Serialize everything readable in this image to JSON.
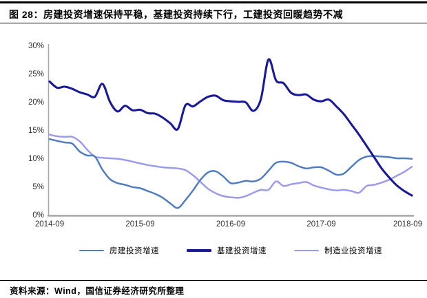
{
  "header": {
    "figure_label": "图 28：",
    "title": "房建投资增速保持平稳，基建投资持续下行，工建投资回暖趋势不减"
  },
  "footer": {
    "text": "资料来源：Wind，国信证券经济研究所整理"
  },
  "colors": {
    "housing_line": "#4f7dbf",
    "infrastructure_line": "#1a1a99",
    "manufacturing_line": "#9b9bec",
    "axis": "#a6a6a6",
    "tick_text": "#303030"
  },
  "chart_data": {
    "type": "line",
    "title": "房建投资增速保持平稳，基建投资持续下行，工建投资回暖趋势不减",
    "x_start": "2014-09",
    "x_end": "2018-09",
    "frequency": "monthly",
    "x_tick_labels": [
      "2014-09",
      "2015-09",
      "2016-09",
      "2017-09",
      "2018-09"
    ],
    "y_tick_labels": [
      "0%",
      "5%",
      "10%",
      "15%",
      "20%",
      "25%",
      "30%"
    ],
    "ylim": [
      0,
      30
    ],
    "grid": false,
    "legend_position": "bottom",
    "series": [
      {
        "name": "房建投资增速",
        "color": "#4f7dbf",
        "stroke_width": 2.5,
        "values": [
          13.4,
          13.1,
          12.8,
          12.6,
          11.2,
          10.5,
          10.3,
          8.0,
          6.3,
          5.6,
          5.3,
          4.9,
          4.7,
          4.2,
          3.7,
          3.0,
          2.0,
          1.2,
          2.6,
          4.3,
          6.2,
          7.5,
          7.7,
          6.8,
          5.6,
          5.7,
          6.0,
          5.9,
          6.4,
          7.8,
          9.2,
          9.4,
          9.2,
          8.6,
          8.2,
          8.4,
          8.4,
          7.8,
          7.1,
          7.3,
          8.5,
          9.7,
          10.3,
          10.4,
          10.3,
          10.2,
          10.0,
          10.0,
          9.9
        ]
      },
      {
        "name": "基建投资增速",
        "color": "#1a1a99",
        "stroke_width": 3.1,
        "values": [
          23.6,
          22.5,
          22.7,
          22.3,
          21.7,
          21.3,
          20.9,
          23.2,
          20.0,
          18.3,
          19.3,
          18.5,
          18.6,
          18.0,
          17.9,
          17.2,
          16.2,
          15.2,
          19.4,
          19.2,
          20.1,
          20.9,
          21.1,
          20.3,
          20.1,
          20.0,
          19.9,
          18.4,
          20.5,
          27.5,
          23.8,
          23.3,
          21.6,
          21.2,
          21.3,
          20.4,
          20.1,
          20.4,
          19.2,
          17.8,
          16.0,
          14.2,
          12.2,
          10.2,
          8.2,
          6.6,
          5.2,
          4.2,
          3.4
        ]
      },
      {
        "name": "制造业投资增速",
        "color": "#9b9bec",
        "stroke_width": 2.5,
        "values": [
          14.2,
          13.9,
          13.8,
          13.8,
          13.0,
          11.5,
          10.3,
          10.1,
          10.0,
          9.9,
          9.7,
          9.4,
          9.1,
          8.8,
          8.6,
          8.4,
          8.3,
          8.2,
          7.9,
          7.0,
          5.8,
          4.6,
          3.8,
          3.3,
          3.1,
          3.0,
          3.3,
          3.9,
          4.4,
          4.4,
          5.9,
          5.1,
          5.4,
          5.6,
          5.8,
          5.2,
          4.8,
          4.5,
          4.3,
          4.4,
          4.2,
          3.9,
          5.1,
          5.3,
          5.7,
          6.2,
          6.9,
          7.6,
          8.5
        ]
      }
    ]
  }
}
